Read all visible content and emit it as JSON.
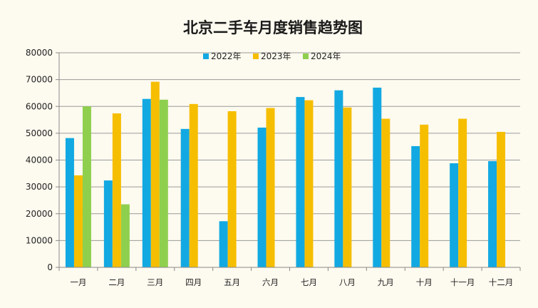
{
  "chart_data": {
    "type": "bar",
    "title": "北京二手车月度销售趋势图",
    "xlabel": "",
    "ylabel": "",
    "ylim": [
      0,
      80000
    ],
    "yticks": [
      0,
      10000,
      20000,
      30000,
      40000,
      50000,
      60000,
      70000,
      80000
    ],
    "grid": true,
    "legend_position": "top-center",
    "categories": [
      "一月",
      "二月",
      "三月",
      "四月",
      "五月",
      "六月",
      "七月",
      "八月",
      "九月",
      "十月",
      "十一月",
      "十二月"
    ],
    "series": [
      {
        "name": "2022年",
        "color": "#12a9e2",
        "values": [
          48200,
          32400,
          62800,
          51600,
          17200,
          52100,
          63500,
          66000,
          67000,
          45200,
          38800,
          39600
        ]
      },
      {
        "name": "2023年",
        "color": "#f6be00",
        "values": [
          34300,
          57400,
          69200,
          60900,
          58200,
          59400,
          62300,
          59600,
          55400,
          53200,
          55400,
          50500
        ]
      },
      {
        "name": "2024年",
        "color": "#8fcf4e",
        "values": [
          60000,
          23500,
          62500,
          null,
          null,
          null,
          null,
          null,
          null,
          null,
          null,
          null
        ]
      }
    ]
  }
}
